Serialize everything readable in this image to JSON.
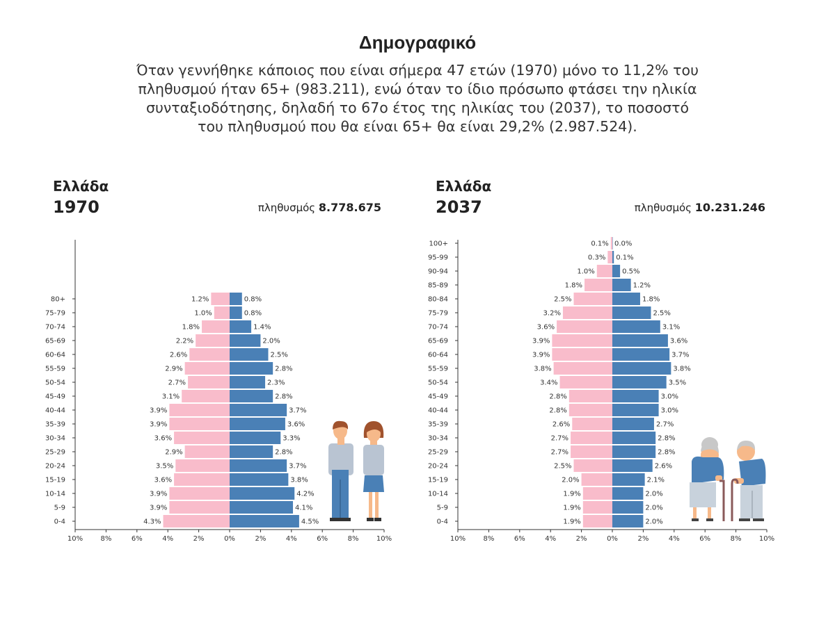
{
  "page": {
    "title": "Δημογραφικό",
    "subtitle_lines": [
      "Όταν γεννήθηκε κάποιος που είναι σήμερα 47 ετών (1970) μόνο το 11,2% του",
      "πληθυσμού ήταν 65+ (983.211), ενώ όταν το ίδιο πρόσωπο φτάσει την ηλικία",
      "συνταξιοδότησης, δηλαδή το 67ο έτος της ηλικίας του (2037), το ποσοστό",
      "του πληθυσμού που θα είναι 65+ θα είναι 29,2% (2.987.524)."
    ]
  },
  "colors": {
    "female": "#f9bccb",
    "male": "#4a80b6",
    "axis": "#333333"
  },
  "chart_data": [
    {
      "type": "bar",
      "orientation": "horizontal-pyramid",
      "country": "Ελλάδα",
      "year": "1970",
      "population_label": "πληθυσμός",
      "population_value": "8.778.675",
      "categories": [
        "80+",
        "75-79",
        "70-74",
        "65-69",
        "60-64",
        "55-59",
        "50-54",
        "45-49",
        "40-44",
        "35-39",
        "30-34",
        "25-29",
        "20-24",
        "15-19",
        "10-14",
        "5-9",
        "0-4"
      ],
      "series": [
        {
          "values": [
            1.2,
            1.0,
            1.8,
            2.2,
            2.6,
            2.9,
            2.7,
            3.1,
            3.9,
            3.9,
            3.6,
            2.9,
            3.5,
            3.6,
            3.9,
            3.9,
            4.3
          ],
          "labels": [
            "1.2%",
            "1.0%",
            "1.8%",
            "2.2%",
            "2.6%",
            "2.9%",
            "2.7%",
            "3.1%",
            "3.9%",
            "3.9%",
            "3.6%",
            "2.9%",
            "3.5%",
            "3.6%",
            "3.9%",
            "3.9%",
            "4.3%"
          ]
        },
        {
          "values": [
            0.8,
            0.8,
            1.4,
            2.0,
            2.5,
            2.8,
            2.3,
            2.8,
            3.7,
            3.6,
            3.3,
            2.8,
            3.7,
            3.8,
            4.2,
            4.1,
            4.5
          ],
          "labels": [
            "0.8%",
            "0.8%",
            "1.4%",
            "2.0%",
            "2.5%",
            "2.8%",
            "2.3%",
            "2.8%",
            "3.7%",
            "3.6%",
            "3.3%",
            "2.8%",
            "3.7%",
            "3.8%",
            "4.2%",
            "4.1%",
            "4.5%"
          ]
        }
      ],
      "xlim": [
        -10,
        10
      ],
      "x_ticks": [
        "10%",
        "8%",
        "6%",
        "4%",
        "2%",
        "0%",
        "2%",
        "4%",
        "6%",
        "8%",
        "10%"
      ],
      "illustration": "young-couple-icon"
    },
    {
      "type": "bar",
      "orientation": "horizontal-pyramid",
      "country": "Ελλάδα",
      "year": "2037",
      "population_label": "πληθυσμός",
      "population_value": "10.231.246",
      "categories": [
        "100+",
        "95-99",
        "90-94",
        "85-89",
        "80-84",
        "75-79",
        "70-74",
        "65-69",
        "60-64",
        "55-59",
        "50-54",
        "45-49",
        "40-44",
        "35-39",
        "30-34",
        "25-29",
        "20-24",
        "15-19",
        "10-14",
        "5-9",
        "0-4"
      ],
      "series": [
        {
          "values": [
            0.1,
            0.3,
            1.0,
            1.8,
            2.5,
            3.2,
            3.6,
            3.9,
            3.9,
            3.8,
            3.4,
            2.8,
            2.8,
            2.6,
            2.7,
            2.7,
            2.5,
            2.0,
            1.9,
            1.9,
            1.9
          ],
          "labels": [
            "0.1%",
            "0.3%",
            "1.0%",
            "1.8%",
            "2.5%",
            "3.2%",
            "3.6%",
            "3.9%",
            "3.9%",
            "3.8%",
            "3.4%",
            "2.8%",
            "2.8%",
            "2.6%",
            "2.7%",
            "2.7%",
            "2.5%",
            "2.0%",
            "1.9%",
            "1.9%",
            "1.9%"
          ]
        },
        {
          "values": [
            0.0,
            0.1,
            0.5,
            1.2,
            1.8,
            2.5,
            3.1,
            3.6,
            3.7,
            3.8,
            3.5,
            3.0,
            3.0,
            2.7,
            2.8,
            2.8,
            2.6,
            2.1,
            2.0,
            2.0,
            2.0
          ],
          "labels": [
            "0.0%",
            "0.1%",
            "0.5%",
            "1.2%",
            "1.8%",
            "2.5%",
            "3.1%",
            "3.6%",
            "3.7%",
            "3.8%",
            "3.5%",
            "3.0%",
            "3.0%",
            "2.7%",
            "2.8%",
            "2.8%",
            "2.6%",
            "2.1%",
            "2.0%",
            "2.0%",
            "2.0%"
          ]
        }
      ],
      "xlim": [
        -10,
        10
      ],
      "x_ticks": [
        "10%",
        "8%",
        "6%",
        "4%",
        "2%",
        "0%",
        "2%",
        "4%",
        "6%",
        "8%",
        "10%"
      ],
      "illustration": "elderly-couple-icon"
    }
  ]
}
